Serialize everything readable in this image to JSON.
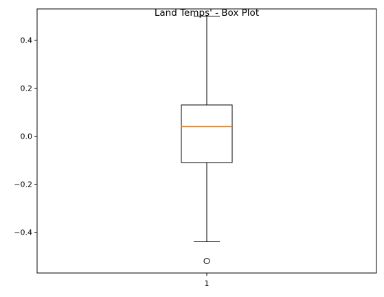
{
  "chart_data": {
    "type": "box",
    "title": "Land Temps' - Box Plot",
    "xlabel": "",
    "ylabel": "",
    "categories": [
      "1"
    ],
    "boxes": [
      {
        "label": "1",
        "whisker_low": -0.44,
        "q1": -0.11,
        "median": 0.04,
        "q3": 0.13,
        "whisker_high": 0.5,
        "outliers": [
          -0.52
        ]
      }
    ],
    "ylim": [
      -0.57,
      0.53
    ],
    "yticks": [
      -0.4,
      -0.2,
      0.0,
      0.2,
      0.4
    ],
    "ytick_labels": [
      "−0.4",
      "−0.2",
      "0.0",
      "0.2",
      "0.4"
    ],
    "grid": false,
    "colors": {
      "box": "#000000",
      "median": "#ff7f0e",
      "whisker": "#000000",
      "outlier": "#000000"
    }
  }
}
